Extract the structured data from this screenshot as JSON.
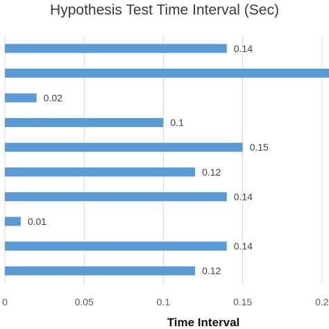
{
  "chart_data": {
    "type": "bar",
    "orientation": "horizontal",
    "title": "Hypothesis Test Time Interval (Sec)",
    "xlabel": "Time Interval",
    "ylabel": "",
    "xlim": [
      0,
      0.2
    ],
    "x_ticks": [
      0,
      0.05,
      0.1,
      0.15,
      0.2
    ],
    "x_tick_labels": [
      "0",
      "0.05",
      "0.1",
      "0.15",
      "0.2"
    ],
    "values": [
      0.14,
      0.22,
      0.02,
      0.1,
      0.15,
      0.12,
      0.14,
      0.01,
      0.14,
      0.12
    ],
    "data_labels": [
      "0.14",
      "",
      "0.02",
      "0.1",
      "0.15",
      "0.12",
      "0.14",
      "0.01",
      "0.14",
      "0.12"
    ],
    "grid": true,
    "legend": "none",
    "bar_color": "#5b9bd5"
  }
}
